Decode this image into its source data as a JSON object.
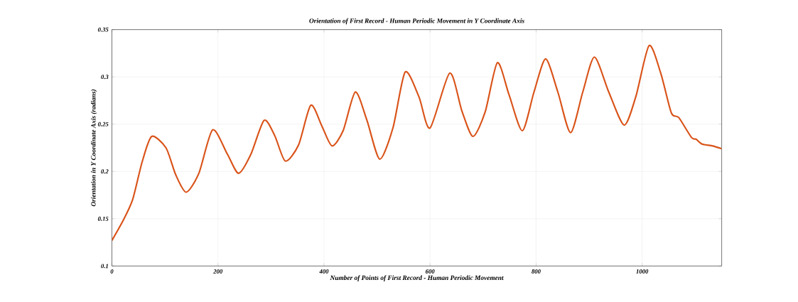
{
  "chart_data": {
    "type": "line",
    "title": "Orientation of First Record - Human Periodic Movement in Y Coordinate Axis",
    "xlabel": "Number of Points of First Record - Human Periodic Movement",
    "ylabel": "Orientation in Y Coordinate Axis (radians)",
    "x": [
      0,
      21,
      39,
      57,
      75,
      102,
      120,
      140,
      164,
      190,
      218,
      239,
      262,
      287,
      307,
      327,
      352,
      375,
      396,
      415,
      436,
      459,
      481,
      505,
      530,
      553,
      579,
      600,
      637,
      660,
      681,
      704,
      727,
      749,
      774,
      796,
      818,
      841,
      865,
      888,
      910,
      937,
      966,
      988,
      1013,
      1035,
      1055,
      1069,
      1093,
      1102,
      1113,
      1133,
      1150
    ],
    "series": [
      {
        "color": "#d95319",
        "values": [
          0.127,
          0.148,
          0.17,
          0.21,
          0.237,
          0.225,
          0.197,
          0.178,
          0.198,
          0.244,
          0.218,
          0.198,
          0.218,
          0.254,
          0.238,
          0.211,
          0.228,
          0.27,
          0.248,
          0.227,
          0.243,
          0.284,
          0.254,
          0.213,
          0.246,
          0.305,
          0.279,
          0.246,
          0.304,
          0.264,
          0.237,
          0.263,
          0.315,
          0.281,
          0.243,
          0.284,
          0.319,
          0.284,
          0.241,
          0.284,
          0.321,
          0.284,
          0.249,
          0.279,
          0.333,
          0.304,
          0.262,
          0.257,
          0.236,
          0.234,
          0.229,
          0.227,
          0.224
        ]
      }
    ],
    "xlim": [
      0,
      1150
    ],
    "ylim": [
      0.1,
      0.35
    ],
    "xticks": [
      0,
      200,
      400,
      600,
      800,
      1000
    ],
    "yticks": [
      0.1,
      0.15,
      0.2,
      0.25,
      0.3,
      0.35
    ],
    "grid": true,
    "marker": "none",
    "line_style": "solid"
  }
}
